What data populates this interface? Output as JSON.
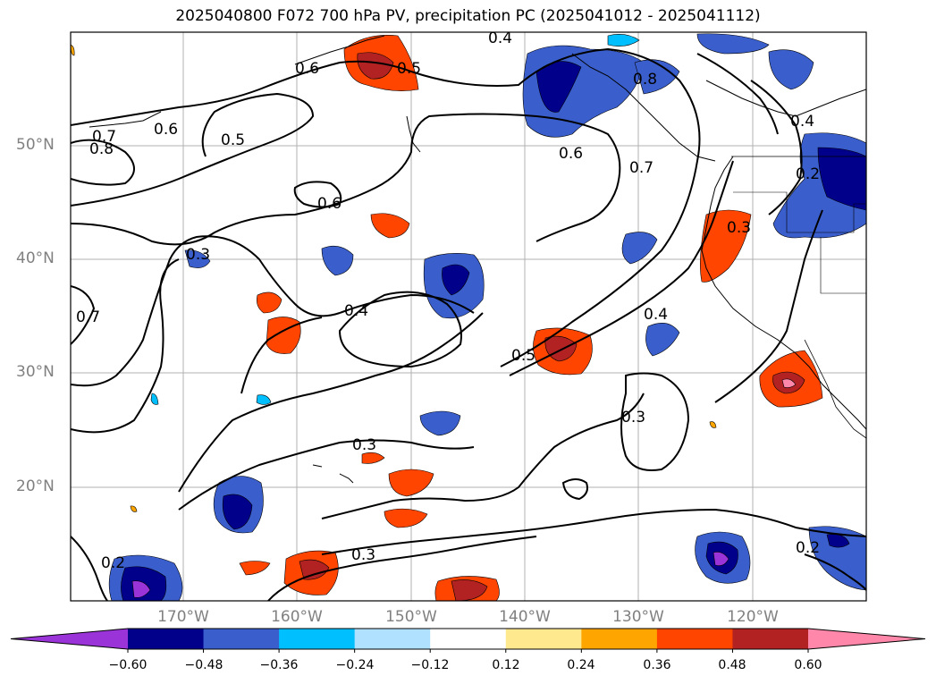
{
  "title": "2025040800 F072 700 hPa PV, precipitation PC (2025041012 - 2025041112)",
  "map": {
    "lat_labels": [
      "50°N",
      "40°N",
      "30°N",
      "20°N"
    ],
    "lon_labels": [
      "170°W",
      "160°W",
      "150°W",
      "140°W",
      "130°W",
      "120°W"
    ],
    "contour_labels": [
      "0.4",
      "0.6",
      "0.5",
      "0.8",
      "0.7",
      "0.6",
      "0.5",
      "0.6",
      "0.8",
      "0.7",
      "0.4",
      "0.2",
      "0.3",
      "0.6",
      "0.3",
      "0.7",
      "0.4",
      "0.4",
      "0.5",
      "0.3",
      "0.3",
      "0.3",
      "0.2",
      "0.2"
    ]
  },
  "colorbar": {
    "tick_labels": [
      "−0.60",
      "−0.48",
      "−0.36",
      "−0.24",
      "−0.12",
      "0.12",
      "0.24",
      "0.36",
      "0.48",
      "0.60"
    ],
    "colors": [
      "#9a34d8",
      "#00008b",
      "#3a5fcd",
      "#00bfff",
      "#b0e2ff",
      "#ffffff",
      "#ffe98f",
      "#ffa500",
      "#ff4500",
      "#b22222",
      "#ff88aa"
    ]
  }
}
